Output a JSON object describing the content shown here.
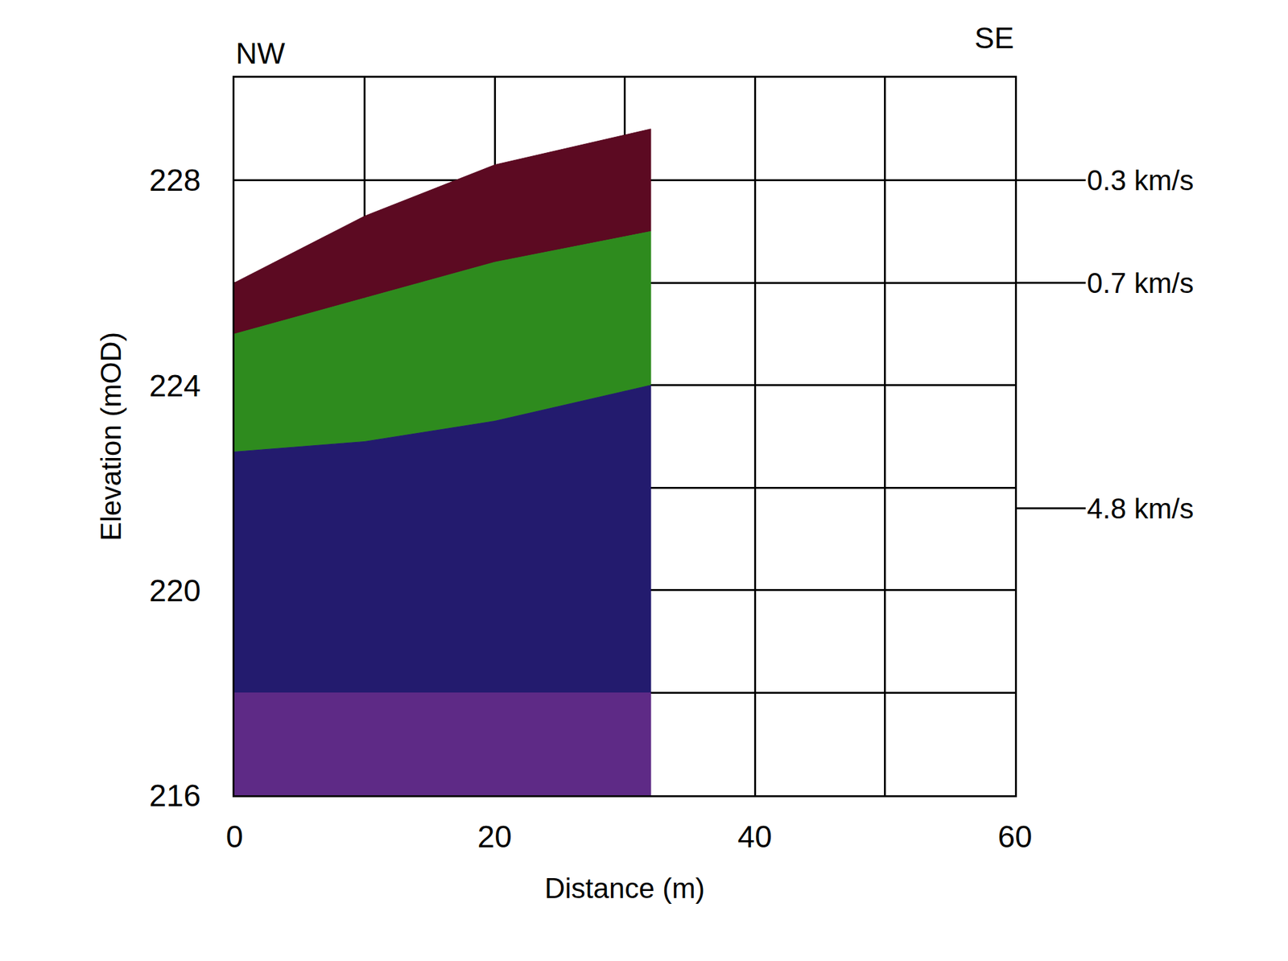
{
  "chart_data": {
    "type": "layered_section",
    "x_label": "Distance (m)",
    "y_label": "Elevation (mOD)",
    "corner_labels": {
      "left": "NW",
      "right": "SE"
    },
    "x": [
      0,
      10,
      20,
      32
    ],
    "surface": [
      226.0,
      227.3,
      228.3,
      229.0
    ],
    "layers": [
      {
        "label": "0.3 km/s",
        "label_y": 228.0,
        "color": "#5c0a22",
        "bottom": [
          225.0,
          225.7,
          226.4,
          227.0
        ]
      },
      {
        "label": "0.7 km/s",
        "label_y": 226.0,
        "color": "#2e8b1e",
        "bottom": [
          222.7,
          222.9,
          223.3,
          224.0
        ]
      },
      {
        "label": "4.8 km/s",
        "label_y": 221.6,
        "color": "#231b6e",
        "bottom": [
          218.0,
          218.0,
          218.0,
          218.0
        ]
      },
      {
        "color": "#5e2a86",
        "bottom": [
          216.0,
          216.0,
          216.0,
          216.0
        ]
      }
    ],
    "xlim": [
      0,
      60
    ],
    "ylim": [
      216,
      230
    ],
    "xticks": [
      0,
      20,
      40,
      60
    ],
    "yticks": [
      216,
      220,
      224,
      228
    ],
    "grid": true
  }
}
